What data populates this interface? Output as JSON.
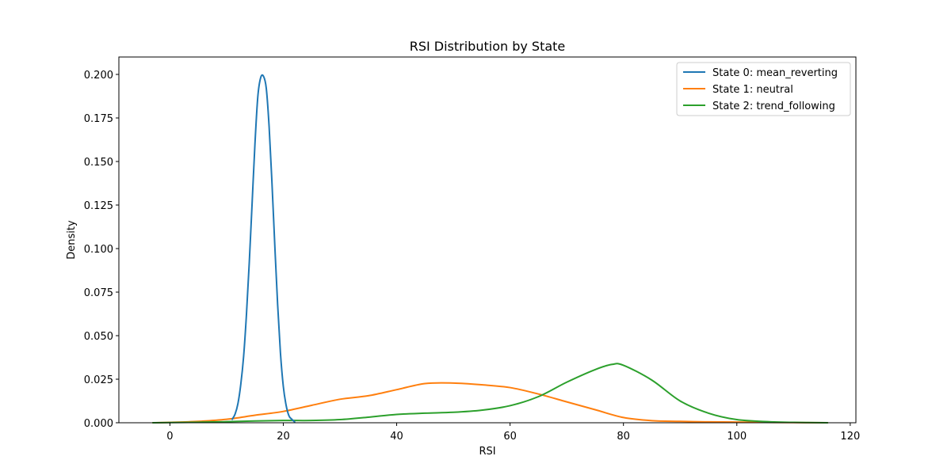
{
  "chart_data": {
    "type": "line",
    "title": "RSI Distribution by State",
    "xlabel": "RSI",
    "ylabel": "Density",
    "xlim": [
      -9,
      121
    ],
    "ylim": [
      0,
      0.21
    ],
    "xticks": [
      0,
      20,
      40,
      60,
      80,
      100,
      120
    ],
    "yticks": [
      0.0,
      0.025,
      0.05,
      0.075,
      0.1,
      0.125,
      0.15,
      0.175,
      0.2
    ],
    "xtick_labels": [
      "0",
      "20",
      "40",
      "60",
      "80",
      "100",
      "120"
    ],
    "ytick_labels": [
      "0.000",
      "0.025",
      "0.050",
      "0.075",
      "0.100",
      "0.125",
      "0.150",
      "0.175",
      "0.200"
    ],
    "grid": false,
    "legend_position": "top-right",
    "series": [
      {
        "name": "State 0: mean_reverting",
        "color": "#1f77b4",
        "x": [
          11.0,
          11.5,
          12.0,
          12.5,
          13.0,
          13.5,
          14.0,
          14.5,
          15.0,
          15.5,
          16.0,
          16.5,
          17.0,
          17.5,
          18.0,
          18.5,
          19.0,
          19.5,
          20.0,
          20.5,
          21.0,
          21.5,
          22.0
        ],
        "y": [
          0.002,
          0.005,
          0.011,
          0.022,
          0.038,
          0.062,
          0.092,
          0.126,
          0.16,
          0.187,
          0.198,
          0.199,
          0.192,
          0.17,
          0.138,
          0.102,
          0.068,
          0.04,
          0.021,
          0.01,
          0.004,
          0.002,
          0.0005
        ]
      },
      {
        "name": "State 1: neutral",
        "color": "#ff7f0e",
        "x": [
          -3,
          0,
          5,
          10,
          15,
          20,
          25,
          30,
          35,
          40,
          45,
          50,
          55,
          60,
          65,
          70,
          75,
          80,
          85,
          90,
          95,
          100,
          105,
          110,
          116
        ],
        "y": [
          0.0,
          0.0002,
          0.0008,
          0.002,
          0.0043,
          0.0065,
          0.01,
          0.0135,
          0.0155,
          0.019,
          0.0225,
          0.0228,
          0.0218,
          0.0202,
          0.0165,
          0.012,
          0.0075,
          0.003,
          0.0012,
          0.0008,
          0.0005,
          0.0004,
          0.0002,
          0.0001,
          0.0
        ]
      },
      {
        "name": "State 2: trend_following",
        "color": "#2ca02c",
        "x": [
          -3,
          0,
          5,
          10,
          15,
          20,
          25,
          30,
          35,
          40,
          45,
          50,
          55,
          60,
          65,
          70,
          75,
          78,
          80,
          85,
          90,
          95,
          100,
          105,
          110,
          116
        ],
        "y": [
          0.0,
          0.0001,
          0.0003,
          0.0006,
          0.001,
          0.0013,
          0.0013,
          0.0018,
          0.0032,
          0.0048,
          0.0055,
          0.006,
          0.0072,
          0.0098,
          0.015,
          0.0233,
          0.0305,
          0.0335,
          0.033,
          0.0245,
          0.0125,
          0.0055,
          0.0018,
          0.0007,
          0.0002,
          0.0
        ]
      }
    ]
  }
}
